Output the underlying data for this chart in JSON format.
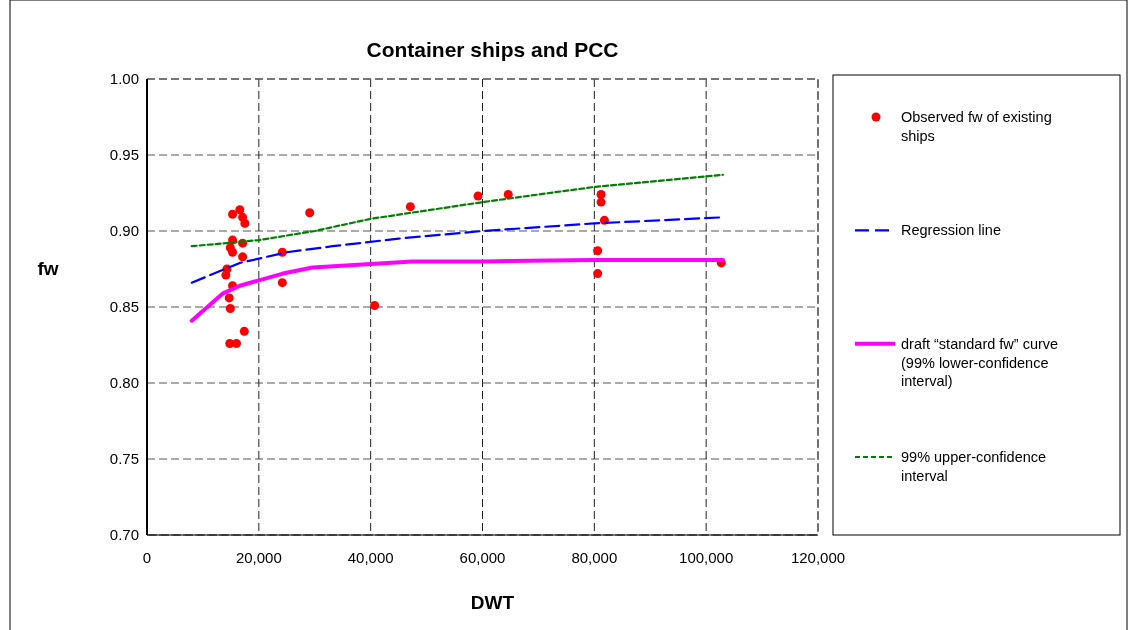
{
  "chart_data": {
    "type": "scatter",
    "title": "Container ships and PCC",
    "xlabel": "DWT",
    "ylabel": "fw",
    "xlim": [
      0,
      120000
    ],
    "ylim": [
      0.7,
      1.0
    ],
    "xticks": [
      0,
      {
        "value": 20000,
        "label": "20,000"
      },
      {
        "value": 40000,
        "label": "40,000"
      },
      {
        "value": 60000,
        "label": "60,000"
      },
      {
        "value": 80000,
        "label": "80,000"
      },
      {
        "value": 100000,
        "label": "100,000"
      },
      {
        "value": 120000,
        "label": "120,000"
      }
    ],
    "yticks": [
      {
        "value": 0.7,
        "label": "0.70"
      },
      {
        "value": 0.75,
        "label": "0.75"
      },
      {
        "value": 0.8,
        "label": "0.80"
      },
      {
        "value": 0.85,
        "label": "0.85"
      },
      {
        "value": 0.9,
        "label": "0.90"
      },
      {
        "value": 0.95,
        "label": "0.95"
      },
      {
        "value": 1.0,
        "label": "1.00"
      }
    ],
    "grid": true,
    "legend": "right",
    "series": [
      {
        "name": "Observed fw of existing ships",
        "marker": "circle",
        "color": "#ff0000",
        "x": [
          15300,
          16600,
          17100,
          17500,
          29100,
          15300,
          17100,
          14900,
          15300,
          24200,
          17100,
          14300,
          14100,
          15300,
          24200,
          14700,
          14900,
          17400,
          14800,
          16000,
          47100,
          59200,
          64600,
          81200,
          81200,
          81800,
          80600,
          80600,
          40700,
          102700
        ],
        "values": [
          0.911,
          0.914,
          0.909,
          0.905,
          0.912,
          0.894,
          0.892,
          0.889,
          0.886,
          0.886,
          0.883,
          0.875,
          0.871,
          0.864,
          0.866,
          0.856,
          0.849,
          0.834,
          0.826,
          0.826,
          0.916,
          0.923,
          0.924,
          0.924,
          0.919,
          0.907,
          0.887,
          0.872,
          0.851,
          0.879
        ]
      },
      {
        "name": "Regression line",
        "type": "line",
        "line_style": "dashed",
        "color": "#0000ff",
        "x": [
          8000,
          16600,
          25000,
          33200,
          45000,
          60000,
          80000,
          103000
        ],
        "values": [
          0.866,
          0.879,
          0.886,
          0.89,
          0.895,
          0.9,
          0.905,
          0.909
        ]
      },
      {
        "name": "draft “standard fw” curve (99% lower-confidence interval)",
        "type": "line",
        "line_style": "solid",
        "color": "#ff00ff",
        "x": [
          8000,
          13600,
          16600,
          24300,
          29600,
          47500,
          60000,
          80000,
          103000
        ],
        "values": [
          0.841,
          0.859,
          0.864,
          0.872,
          0.876,
          0.88,
          0.88,
          0.881,
          0.881
        ]
      },
      {
        "name": "99% upper-confidence interval",
        "type": "line",
        "line_style": "dotted",
        "color": "#008000",
        "x": [
          8000,
          20000,
          30000,
          40000,
          60000,
          80000,
          103000
        ],
        "values": [
          0.89,
          0.894,
          0.9,
          0.908,
          0.919,
          0.929,
          0.937
        ]
      }
    ]
  }
}
